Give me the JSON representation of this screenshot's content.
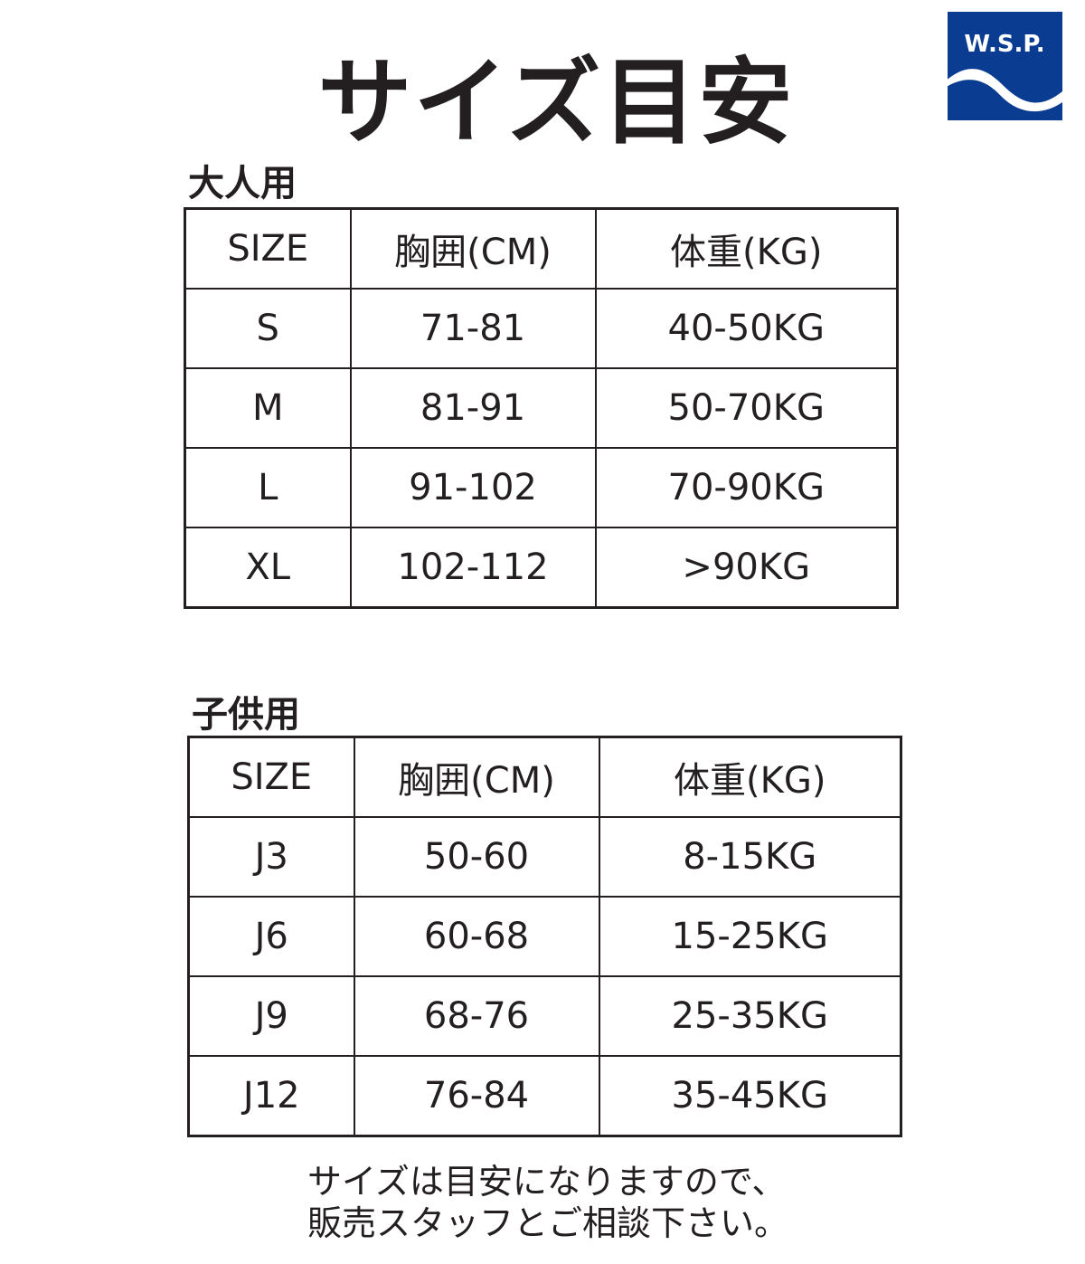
{
  "title": "サイズ目安",
  "logo": {
    "text": "W.S.P.",
    "color": "#0a3d91"
  },
  "adult": {
    "label": "大人用",
    "headers": [
      "SIZE",
      "胸囲(CM)",
      "体重(KG)"
    ],
    "rows": [
      [
        "S",
        "71-81",
        "40-50KG"
      ],
      [
        "M",
        "81-91",
        "50-70KG"
      ],
      [
        "L",
        "91-102",
        "70-90KG"
      ],
      [
        "XL",
        "102-112",
        ">90KG"
      ]
    ]
  },
  "kids": {
    "label": "子供用",
    "headers": [
      "SIZE",
      "胸囲(CM)",
      "体重(KG)"
    ],
    "rows": [
      [
        "J3",
        "50-60",
        "8-15KG"
      ],
      [
        "J6",
        "60-68",
        "15-25KG"
      ],
      [
        "J9",
        "68-76",
        "25-35KG"
      ],
      [
        "J12",
        "76-84",
        "35-45KG"
      ]
    ]
  },
  "note": {
    "line1": "サイズは目安になりますので、",
    "line2": "販売スタッフとご相談下さい。"
  }
}
